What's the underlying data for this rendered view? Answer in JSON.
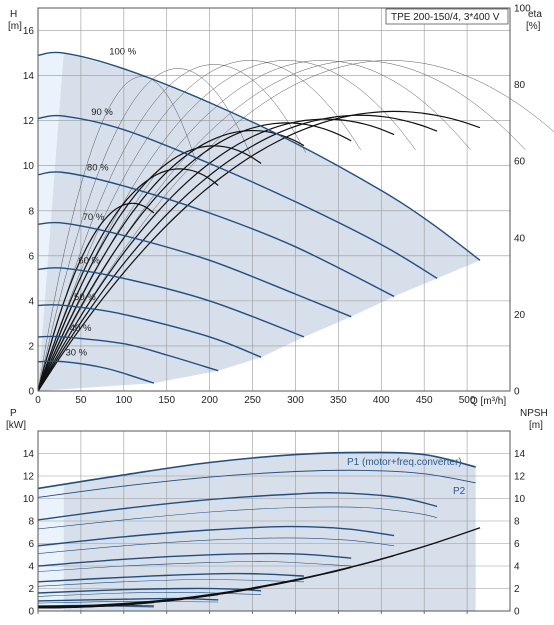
{
  "chart_data": [
    {
      "type": "line",
      "chart": "head",
      "title_box": "TPE 200-150/4, 3*400 V",
      "y_unit_label": "H",
      "y_unit": "[m]",
      "y2_unit_label": "eta",
      "y2_unit": "[%]",
      "x_axis_label": "Q [m³/h]",
      "xlim": [
        0,
        550
      ],
      "ylim": [
        0,
        17
      ],
      "y2lim": [
        0,
        100
      ],
      "x_ticks": [
        0,
        50,
        100,
        150,
        200,
        250,
        300,
        350,
        400,
        450,
        500
      ],
      "y_ticks": [
        0,
        2,
        4,
        6,
        8,
        10,
        12,
        14,
        16
      ],
      "y2_ticks": [
        0,
        20,
        40,
        60,
        80,
        100
      ],
      "grid": true,
      "area_color": "#d6dfea",
      "area_light_color": "#eaf2fb",
      "curve_color": "#1f4f82",
      "speed_curves": [
        {
          "label": "100 %",
          "q_end": 515,
          "points": [
            [
              0,
              14.9
            ],
            [
              30,
              15.0
            ],
            [
              100,
              14.3
            ],
            [
              200,
              12.8
            ],
            [
              300,
              11.0
            ],
            [
              400,
              8.9
            ],
            [
              460,
              7.4
            ],
            [
              515,
              5.8
            ]
          ]
        },
        {
          "label": "90 %",
          "q_end": 465,
          "points": [
            [
              0,
              12.1
            ],
            [
              30,
              12.2
            ],
            [
              100,
              11.6
            ],
            [
              200,
              10.1
            ],
            [
              300,
              8.4
            ],
            [
              400,
              6.5
            ],
            [
              465,
              5.0
            ]
          ]
        },
        {
          "label": "80 %",
          "q_end": 415,
          "points": [
            [
              0,
              9.6
            ],
            [
              30,
              9.7
            ],
            [
              100,
              9.1
            ],
            [
              200,
              7.9
            ],
            [
              300,
              6.4
            ],
            [
              415,
              4.2
            ]
          ]
        },
        {
          "label": "70 %",
          "q_end": 365,
          "points": [
            [
              0,
              7.4
            ],
            [
              30,
              7.45
            ],
            [
              100,
              6.9
            ],
            [
              200,
              5.8
            ],
            [
              300,
              4.3
            ],
            [
              365,
              3.3
            ]
          ]
        },
        {
          "label": "60 %",
          "q_end": 310,
          "points": [
            [
              0,
              5.4
            ],
            [
              30,
              5.45
            ],
            [
              100,
              5.0
            ],
            [
              200,
              4.0
            ],
            [
              310,
              2.4
            ]
          ]
        },
        {
          "label": "50 %",
          "q_end": 260,
          "points": [
            [
              0,
              3.8
            ],
            [
              30,
              3.8
            ],
            [
              100,
              3.4
            ],
            [
              200,
              2.4
            ],
            [
              260,
              1.5
            ]
          ]
        },
        {
          "label": "40 %",
          "q_end": 210,
          "points": [
            [
              0,
              2.4
            ],
            [
              30,
              2.4
            ],
            [
              100,
              2.1
            ],
            [
              150,
              1.6
            ],
            [
              210,
              0.9
            ]
          ]
        },
        {
          "label": "30 %",
          "q_end": 135,
          "points": [
            [
              0,
              1.3
            ],
            [
              30,
              1.3
            ],
            [
              80,
              1.0
            ],
            [
              135,
              0.35
            ]
          ]
        }
      ],
      "efficiency_curves": [
        {
          "speed": "100 %",
          "peak_q": 415,
          "peak_eta": 73,
          "q_end": 515
        },
        {
          "speed": "90 %",
          "peak_q": 375,
          "peak_eta": 72,
          "q_end": 465
        },
        {
          "speed": "80 %",
          "peak_q": 335,
          "peak_eta": 71,
          "q_end": 415
        },
        {
          "speed": "70 %",
          "peak_q": 290,
          "peak_eta": 70,
          "q_end": 365
        },
        {
          "speed": "60 %",
          "peak_q": 250,
          "peak_eta": 68,
          "q_end": 310
        },
        {
          "speed": "50 %",
          "peak_q": 205,
          "peak_eta": 64,
          "q_end": 260
        },
        {
          "speed": "40 %",
          "peak_q": 165,
          "peak_eta": 58,
          "q_end": 210
        },
        {
          "speed": "30 %",
          "peak_q": 110,
          "peak_eta": 49,
          "q_end": 135
        }
      ],
      "eta_p1_curves": [
        {
          "speed": "100 %",
          "peak_q": 390,
          "peak_eta": 82
        },
        {
          "speed": "90 %",
          "peak_q": 355,
          "peak_eta": 82
        },
        {
          "speed": "80 %",
          "peak_q": 315,
          "peak_eta": 82
        },
        {
          "speed": "70 %",
          "peak_q": 275,
          "peak_eta": 82
        },
        {
          "speed": "60 %",
          "peak_q": 235,
          "peak_eta": 82
        },
        {
          "speed": "50 %",
          "peak_q": 195,
          "peak_eta": 81
        },
        {
          "speed": "40 %",
          "peak_q": 155,
          "peak_eta": 80
        },
        {
          "speed": "30 %",
          "peak_q": 115,
          "peak_eta": 78
        }
      ]
    },
    {
      "type": "line",
      "chart": "power",
      "y_unit_label": "P",
      "y_unit": "[kW]",
      "y2_unit_label": "NPSH",
      "y2_unit": "[m]",
      "xlim": [
        0,
        550
      ],
      "ylim": [
        0,
        16
      ],
      "y2lim": [
        0,
        16
      ],
      "y_ticks": [
        0,
        2,
        4,
        6,
        8,
        10,
        12,
        14
      ],
      "y2_ticks": [
        0,
        2,
        4,
        6,
        8,
        10,
        12,
        14
      ],
      "p1_label": "P1 (motor+freq.converter)",
      "p2_label": "P2",
      "p1_curve": [
        [
          0,
          10.9
        ],
        [
          100,
          12.1
        ],
        [
          200,
          13.2
        ],
        [
          300,
          13.9
        ],
        [
          380,
          14.1
        ],
        [
          450,
          13.9
        ],
        [
          510,
          12.8
        ]
      ],
      "p2_curve": [
        [
          0,
          10.1
        ],
        [
          100,
          11.1
        ],
        [
          200,
          11.9
        ],
        [
          300,
          12.4
        ],
        [
          380,
          12.5
        ],
        [
          450,
          12.2
        ],
        [
          510,
          11.4
        ]
      ],
      "p1_speed_curves": [
        {
          "speed": "90 %",
          "points": [
            [
              0,
              8.1
            ],
            [
              100,
              9.1
            ],
            [
              200,
              9.9
            ],
            [
              300,
              10.4
            ],
            [
              350,
              10.5
            ],
            [
              420,
              10.1
            ],
            [
              465,
              9.3
            ]
          ]
        },
        {
          "speed": "80 %",
          "points": [
            [
              0,
              5.8
            ],
            [
              100,
              6.6
            ],
            [
              200,
              7.2
            ],
            [
              290,
              7.5
            ],
            [
              360,
              7.3
            ],
            [
              415,
              6.7
            ]
          ]
        },
        {
          "speed": "70 %",
          "points": [
            [
              0,
              4.0
            ],
            [
              100,
              4.6
            ],
            [
              200,
              5.0
            ],
            [
              270,
              5.1
            ],
            [
              320,
              5.0
            ],
            [
              365,
              4.7
            ]
          ]
        },
        {
          "speed": "60 %",
          "points": [
            [
              0,
              2.6
            ],
            [
              100,
              3.0
            ],
            [
              200,
              3.3
            ],
            [
              260,
              3.3
            ],
            [
              310,
              3.1
            ]
          ]
        },
        {
          "speed": "50 %",
          "points": [
            [
              0,
              1.6
            ],
            [
              100,
              1.9
            ],
            [
              180,
              2.0
            ],
            [
              225,
              1.95
            ],
            [
              260,
              1.8
            ]
          ]
        },
        {
          "speed": "40 %",
          "points": [
            [
              0,
              0.9
            ],
            [
              100,
              1.05
            ],
            [
              160,
              1.1
            ],
            [
              210,
              1.0
            ]
          ]
        },
        {
          "speed": "30 %",
          "points": [
            [
              0,
              0.45
            ],
            [
              80,
              0.5
            ],
            [
              135,
              0.45
            ]
          ]
        }
      ],
      "p2_speed_curves": [
        {
          "speed": "90 %",
          "points": [
            [
              0,
              7.3
            ],
            [
              100,
              8.1
            ],
            [
              200,
              8.8
            ],
            [
              300,
              9.2
            ],
            [
              380,
              9.2
            ],
            [
              440,
              8.7
            ],
            [
              465,
              8.3
            ]
          ]
        },
        {
          "speed": "80 %",
          "points": [
            [
              0,
              5.1
            ],
            [
              100,
              5.8
            ],
            [
              200,
              6.3
            ],
            [
              290,
              6.5
            ],
            [
              360,
              6.3
            ],
            [
              415,
              5.8
            ]
          ]
        },
        {
          "speed": "70 %",
          "points": [
            [
              0,
              3.5
            ],
            [
              100,
              4.0
            ],
            [
              200,
              4.3
            ],
            [
              270,
              4.4
            ],
            [
              365,
              4.0
            ]
          ]
        },
        {
          "speed": "60 %",
          "points": [
            [
              0,
              2.2
            ],
            [
              100,
              2.6
            ],
            [
              200,
              2.8
            ],
            [
              310,
              2.6
            ]
          ]
        },
        {
          "speed": "50 %",
          "points": [
            [
              0,
              1.3
            ],
            [
              100,
              1.6
            ],
            [
              180,
              1.65
            ],
            [
              260,
              1.45
            ]
          ]
        },
        {
          "speed": "40 %",
          "points": [
            [
              0,
              0.7
            ],
            [
              100,
              0.85
            ],
            [
              210,
              0.8
            ]
          ]
        },
        {
          "speed": "30 %",
          "points": [
            [
              0,
              0.35
            ],
            [
              80,
              0.4
            ],
            [
              135,
              0.35
            ]
          ]
        }
      ],
      "npsh_curves": [
        {
          "speed": "100 %",
          "q_end": 515,
          "k": 2.64e-05,
          "c": 0.4
        },
        {
          "speed": "90 %",
          "q_end": 465,
          "k": 2.64e-05,
          "c": 0.38
        },
        {
          "speed": "80 %",
          "q_end": 415,
          "k": 2.64e-05,
          "c": 0.36
        },
        {
          "speed": "70 %",
          "q_end": 365,
          "k": 2.64e-05,
          "c": 0.34
        },
        {
          "speed": "60 %",
          "q_end": 310,
          "k": 2.64e-05,
          "c": 0.32
        },
        {
          "speed": "50 %",
          "q_end": 260,
          "k": 2.64e-05,
          "c": 0.3
        },
        {
          "speed": "40 %",
          "q_end": 210,
          "k": 2.64e-05,
          "c": 0.28
        },
        {
          "speed": "30 %",
          "q_end": 135,
          "k": 2.64e-05,
          "c": 0.26
        }
      ]
    }
  ]
}
